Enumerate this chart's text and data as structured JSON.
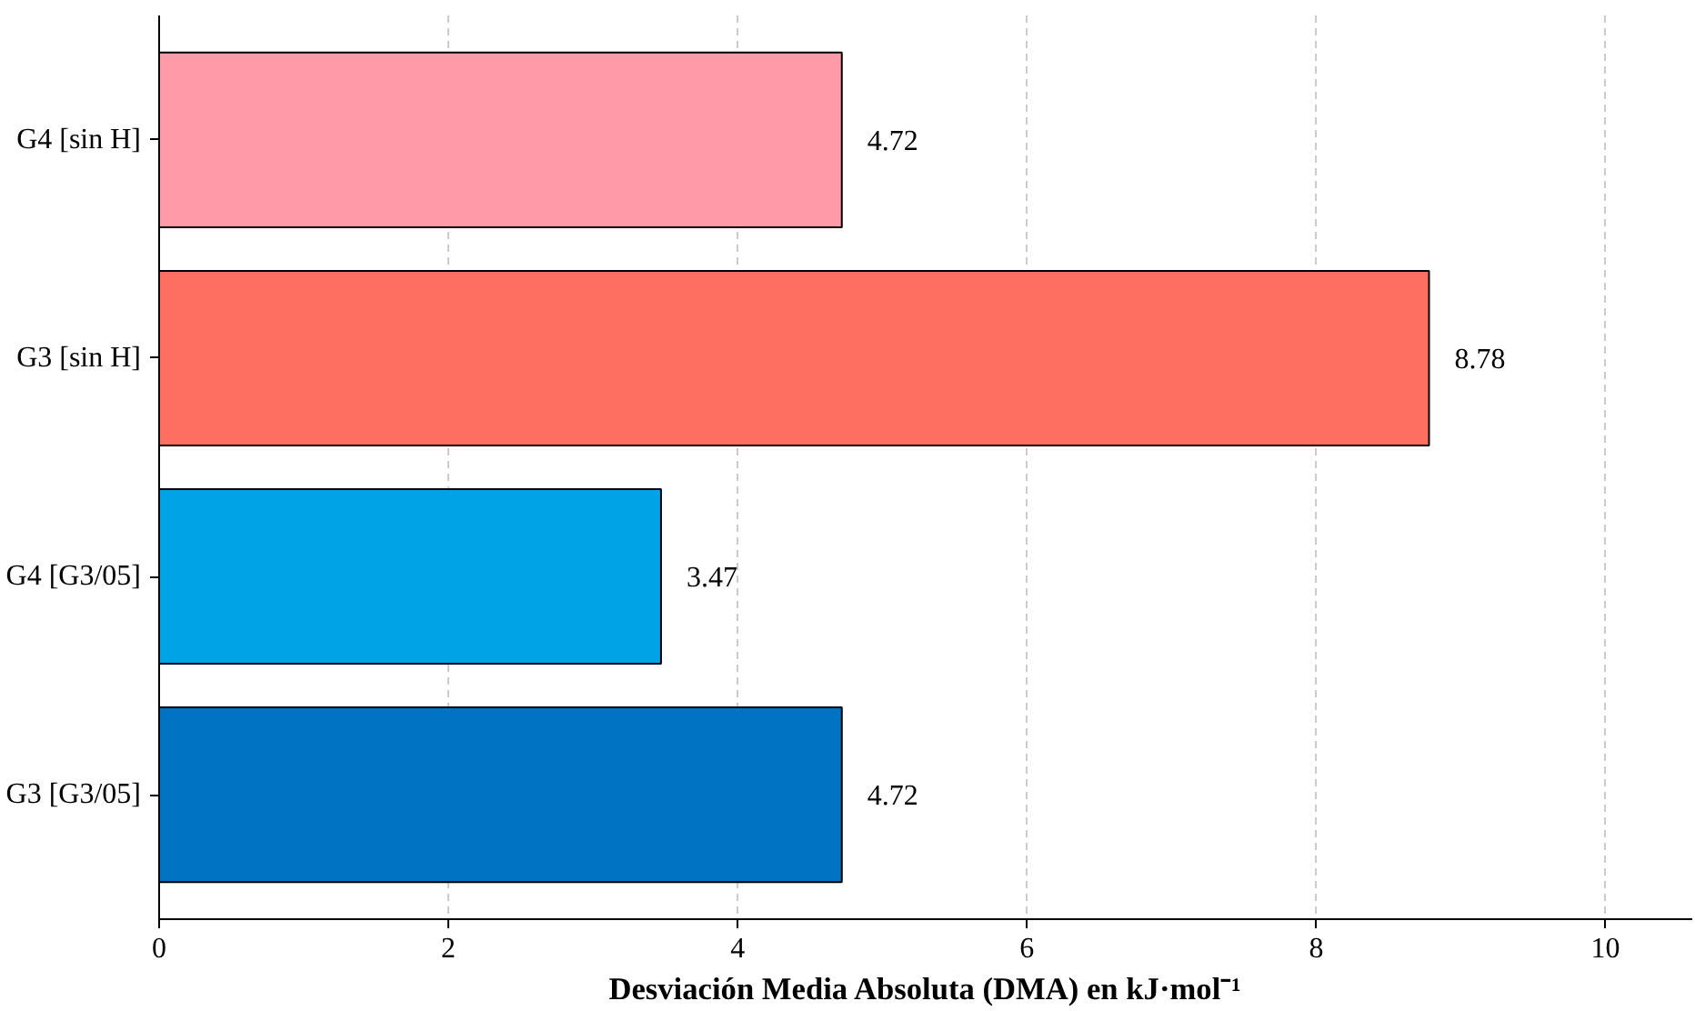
{
  "chart_data": {
    "type": "bar",
    "orientation": "horizontal",
    "xlabel": "Desviación Media Absoluta (DMA) en kJ·mol⁻¹",
    "categories": [
      "G4 [sin H]",
      "G3 [sin H]",
      "G4 [G3/05]",
      "G3 [G3/05]"
    ],
    "values": [
      4.72,
      8.78,
      3.47,
      4.72
    ],
    "colors": [
      "#ff9ba8",
      "#ff6f61",
      "#00a3e6",
      "#0073c2"
    ],
    "xlim": [
      0,
      10.6
    ],
    "xticks": [
      0,
      2,
      4,
      6,
      8,
      10
    ],
    "grid": "x",
    "data_labels": true
  }
}
